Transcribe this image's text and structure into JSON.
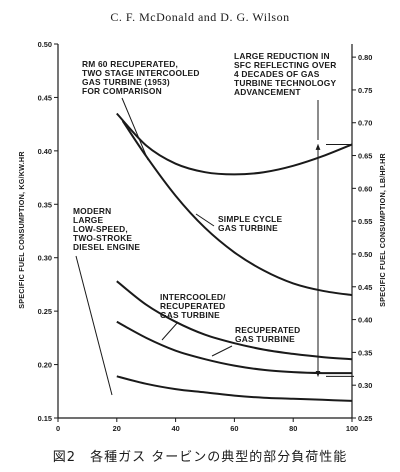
{
  "page": {
    "header": "C. F. McDonald and D. G. Wilson",
    "caption": "図2　各種ガス タービンの典型的部分負荷性能"
  },
  "chart_data": {
    "type": "line",
    "xlabel": "",
    "ylabel_left": "SPECIFIC FUEL CONSUMPTION, KG/KW.HR",
    "ylabel_right": "SPECIFIC FUEL CONSUMPTION, LB/HP.HR",
    "xlim": [
      0,
      100
    ],
    "ylim_left": [
      0.15,
      0.5
    ],
    "ylim_right": [
      0.25,
      0.82
    ],
    "xticks": [
      0,
      20,
      40,
      60,
      80,
      100
    ],
    "xtick_labels": [
      "0",
      "20",
      "40",
      "60",
      "80",
      "100"
    ],
    "yticks_left": [
      0.15,
      0.2,
      0.25,
      0.3,
      0.35,
      0.4,
      0.45,
      0.5
    ],
    "ytick_labels_left": [
      "0.15",
      "0.20",
      "0.25",
      "0.30",
      "0.35",
      "0.40",
      "0.45",
      "0.50"
    ],
    "yticks_right": [
      0.25,
      0.3,
      0.35,
      0.4,
      0.45,
      0.5,
      0.55,
      0.6,
      0.65,
      0.7,
      0.75,
      0.8
    ],
    "ytick_labels_right": [
      "0.25",
      "0.30",
      "0.35",
      "0.40",
      "0.45",
      "0.50",
      "0.55",
      "0.60",
      "0.65",
      "0.70",
      "0.75",
      "0.80"
    ],
    "grid": false,
    "series": [
      {
        "label_lines": [
          "RM 60 RECUPERATED,",
          "TWO STAGE INTERCOOLED",
          "GAS TURBINE (1953)",
          "FOR COMPARISON"
        ],
        "x": [
          20,
          30,
          40,
          50,
          60,
          70,
          80,
          90,
          100
        ],
        "y": [
          0.435,
          0.405,
          0.388,
          0.38,
          0.378,
          0.38,
          0.386,
          0.395,
          0.406
        ]
      },
      {
        "label_lines": [
          "SIMPLE CYCLE",
          "GAS TURBINE"
        ],
        "x": [
          22,
          30,
          40,
          50,
          60,
          70,
          80,
          90,
          100
        ],
        "y": [
          0.428,
          0.395,
          0.358,
          0.328,
          0.305,
          0.288,
          0.276,
          0.269,
          0.265
        ]
      },
      {
        "label_lines": [
          "INTERCOOLED/",
          "RECUPERATED",
          "GAS TURBINE"
        ],
        "x": [
          20,
          30,
          40,
          50,
          60,
          70,
          80,
          90,
          100
        ],
        "y": [
          0.278,
          0.256,
          0.24,
          0.228,
          0.22,
          0.214,
          0.21,
          0.207,
          0.205
        ]
      },
      {
        "label_lines": [
          "RECUPERATED",
          "GAS TURBINE"
        ],
        "x": [
          20,
          30,
          40,
          50,
          60,
          70,
          80,
          90,
          100
        ],
        "y": [
          0.24,
          0.225,
          0.213,
          0.205,
          0.199,
          0.195,
          0.193,
          0.192,
          0.192
        ]
      },
      {
        "label_lines": [
          "MODERN",
          "LARGE",
          "LOW-SPEED,",
          "TWO-STROKE",
          "DIESEL ENGINE"
        ],
        "x": [
          20,
          30,
          40,
          50,
          60,
          70,
          80,
          90,
          100
        ],
        "y": [
          0.189,
          0.182,
          0.177,
          0.174,
          0.171,
          0.169,
          0.168,
          0.167,
          0.166
        ]
      }
    ],
    "annotations": [
      {
        "label_lines": [
          "LARGE REDUCTION IN",
          "SFC REFLECTING OVER",
          "4 DECADES OF GAS",
          "TURBINE TECHNOLOGY",
          "ADVANCEMENT"
        ]
      }
    ],
    "reduction_span": {
      "x": 100,
      "y_from": 0.406,
      "y_to": 0.189
    }
  }
}
